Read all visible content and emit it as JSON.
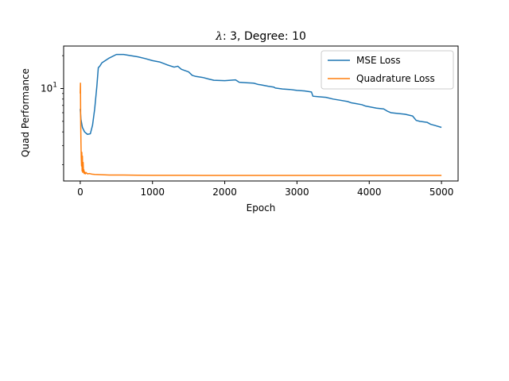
{
  "chart_data": {
    "type": "line",
    "title": "λ: 3, Degree: 10",
    "title_symbol": "λ",
    "title_rest": ": 3, Degree: 10",
    "xlabel": "Epoch",
    "ylabel": "Quad Performance",
    "xlim": [
      -230,
      5230
    ],
    "ylim": [
      1.42,
      24.5
    ],
    "yscale": "log",
    "x_ticks": [
      0,
      1000,
      2000,
      3000,
      4000,
      5000
    ],
    "x_tick_labels": [
      "0",
      "1000",
      "2000",
      "3000",
      "4000",
      "5000"
    ],
    "y_ticks": [
      10
    ],
    "y_tick_labels": [
      "10"
    ],
    "y_tick_label_base": "10",
    "y_tick_label_exp": "1",
    "grid": false,
    "legend_position": "top-right",
    "series": [
      {
        "name": "MSE Loss",
        "color": "#1f77b4",
        "x": [
          0,
          10,
          30,
          60,
          100,
          140,
          170,
          200,
          230,
          250,
          270,
          300,
          400,
          500,
          600,
          700,
          800,
          900,
          1000,
          1100,
          1200,
          1300,
          1350,
          1400,
          1500,
          1550,
          1600,
          1700,
          1780,
          1850,
          2000,
          2150,
          2200,
          2300,
          2400,
          2460,
          2500,
          2600,
          2680,
          2700,
          2800,
          2900,
          3000,
          3100,
          3200,
          3220,
          3300,
          3400,
          3500,
          3550,
          3600,
          3700,
          3750,
          3800,
          3900,
          3950,
          4000,
          4100,
          4200,
          4250,
          4300,
          4400,
          4500,
          4600,
          4650,
          4700,
          4800,
          4850,
          4900,
          5000
        ],
        "y": [
          6.5,
          5.2,
          4.4,
          4.0,
          3.8,
          3.85,
          4.6,
          6.5,
          10.5,
          15.5,
          16.0,
          17.2,
          19.0,
          20.5,
          20.5,
          20.0,
          19.5,
          18.8,
          18.0,
          17.5,
          16.5,
          15.7,
          16.0,
          15.0,
          14.2,
          13.2,
          12.9,
          12.6,
          12.2,
          11.9,
          11.8,
          12.0,
          11.4,
          11.3,
          11.2,
          10.9,
          10.8,
          10.5,
          10.3,
          10.1,
          9.9,
          9.8,
          9.6,
          9.5,
          9.3,
          8.5,
          8.4,
          8.3,
          8.0,
          7.9,
          7.8,
          7.6,
          7.4,
          7.3,
          7.1,
          6.9,
          6.8,
          6.6,
          6.5,
          6.2,
          6.0,
          5.9,
          5.8,
          5.6,
          5.1,
          5.0,
          4.9,
          4.7,
          4.6,
          4.4
        ]
      },
      {
        "name": "Quadrature Loss",
        "color": "#ff7f0e",
        "x": [
          0,
          3,
          6,
          10,
          14,
          18,
          22,
          26,
          30,
          35,
          40,
          45,
          50,
          55,
          60,
          70,
          80,
          100,
          130,
          160,
          200,
          300,
          400,
          600,
          800,
          1000,
          1500,
          2000,
          2500,
          3000,
          3500,
          4000,
          4500,
          5000
        ],
        "y": [
          9.0,
          11.2,
          5.0,
          3.2,
          2.3,
          1.95,
          2.6,
          1.75,
          2.4,
          1.7,
          2.1,
          1.72,
          1.8,
          1.66,
          1.72,
          1.65,
          1.7,
          1.65,
          1.66,
          1.64,
          1.63,
          1.62,
          1.61,
          1.61,
          1.605,
          1.6,
          1.6,
          1.595,
          1.595,
          1.595,
          1.595,
          1.595,
          1.595,
          1.595
        ]
      }
    ]
  }
}
